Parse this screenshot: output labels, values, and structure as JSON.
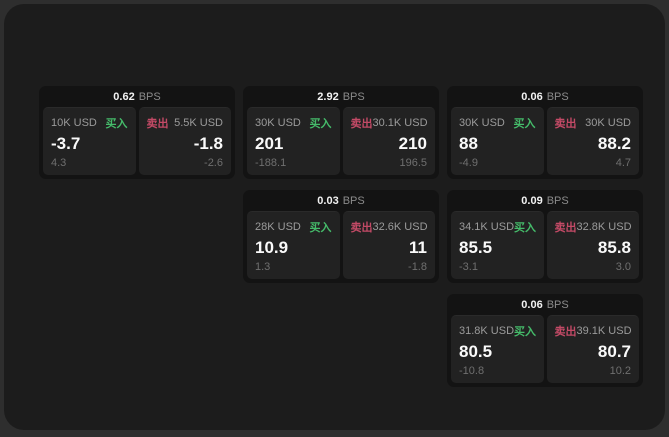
{
  "page": {
    "window_bg": "#1c1c1c",
    "outer_bg": "#2e2e2e",
    "card_bg": "#131313",
    "panel_bg": "#222222"
  },
  "colors": {
    "buy_green": "#45bb6a",
    "sell_red": "#c34a66",
    "price_white": "#fafafa",
    "label_gray": "#9b9b9b",
    "delta_gray": "#6f6f6f"
  },
  "labels": {
    "bps_unit": "BPS",
    "buy": "买入",
    "sell": "卖出"
  },
  "cards": [
    {
      "row": 1,
      "col": 1,
      "bps": "0.62",
      "buy": {
        "amount": "10K USD",
        "price": "-3.7",
        "delta": "4.3"
      },
      "sell": {
        "amount": "5.5K USD",
        "price": "-1.8",
        "delta": "-2.6"
      }
    },
    {
      "row": 1,
      "col": 2,
      "bps": "2.92",
      "buy": {
        "amount": "30K USD",
        "price": "201",
        "delta": "-188.1"
      },
      "sell": {
        "amount": "30.1K USD",
        "price": "210",
        "delta": "196.5"
      }
    },
    {
      "row": 1,
      "col": 3,
      "bps": "0.06",
      "buy": {
        "amount": "30K USD",
        "price": "88",
        "delta": "-4.9"
      },
      "sell": {
        "amount": "30K USD",
        "price": "88.2",
        "delta": "4.7"
      }
    },
    {
      "row": 2,
      "col": 2,
      "bps": "0.03",
      "buy": {
        "amount": "28K USD",
        "price": "10.9",
        "delta": "1.3"
      },
      "sell": {
        "amount": "32.6K USD",
        "price": "11",
        "delta": "-1.8"
      }
    },
    {
      "row": 2,
      "col": 3,
      "bps": "0.09",
      "buy": {
        "amount": "34.1K USD",
        "price": "85.5",
        "delta": "-3.1"
      },
      "sell": {
        "amount": "32.8K USD",
        "price": "85.8",
        "delta": "3.0"
      }
    },
    {
      "row": 3,
      "col": 3,
      "bps": "0.06",
      "buy": {
        "amount": "31.8K USD",
        "price": "80.5",
        "delta": "-10.8"
      },
      "sell": {
        "amount": "39.1K USD",
        "price": "80.7",
        "delta": "10.2"
      }
    }
  ]
}
